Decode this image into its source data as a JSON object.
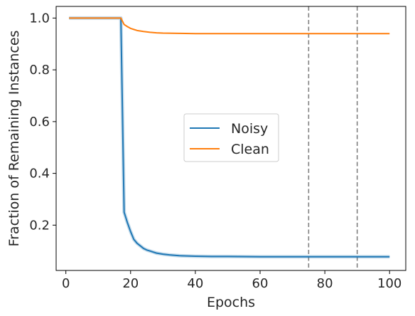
{
  "chart_data": {
    "type": "line",
    "xlabel": "Epochs",
    "ylabel": "Fraction of Remaining Instances",
    "xlim": [
      -3,
      105
    ],
    "ylim": [
      0.025,
      1.045
    ],
    "xticks": [
      0,
      20,
      40,
      60,
      80,
      100
    ],
    "yticks": [
      0.2,
      0.4,
      0.6,
      0.8,
      1.0
    ],
    "xtick_labels": [
      "0",
      "20",
      "40",
      "60",
      "80",
      "100"
    ],
    "ytick_labels": [
      "0.2",
      "0.4",
      "0.6",
      "0.8",
      "1.0"
    ],
    "grid": false,
    "legend_position": "center",
    "vlines": [
      {
        "x": 75,
        "style": "dashed",
        "color": "#808080"
      },
      {
        "x": 90,
        "style": "dashed",
        "color": "#808080"
      }
    ],
    "series": [
      {
        "name": "Noisy",
        "color": "#1f77b4",
        "x": [
          1,
          17,
          18,
          19,
          20,
          21,
          22,
          23,
          24,
          25,
          26,
          27,
          28,
          30,
          32,
          35,
          40,
          45,
          50,
          60,
          70,
          80,
          90,
          100
        ],
        "y": [
          1.0,
          1.0,
          0.25,
          0.21,
          0.175,
          0.145,
          0.13,
          0.12,
          0.11,
          0.104,
          0.1,
          0.096,
          0.092,
          0.088,
          0.085,
          0.082,
          0.08,
          0.079,
          0.079,
          0.078,
          0.078,
          0.078,
          0.078,
          0.078
        ]
      },
      {
        "name": "Clean",
        "color": "#ff7f0e",
        "x": [
          1,
          17,
          18,
          19,
          20,
          21,
          22,
          24,
          26,
          28,
          30,
          35,
          40,
          50,
          60,
          70,
          80,
          90,
          100
        ],
        "y": [
          1.0,
          1.0,
          0.975,
          0.967,
          0.96,
          0.956,
          0.952,
          0.948,
          0.945,
          0.943,
          0.942,
          0.941,
          0.94,
          0.94,
          0.94,
          0.94,
          0.94,
          0.94,
          0.94
        ]
      }
    ]
  }
}
